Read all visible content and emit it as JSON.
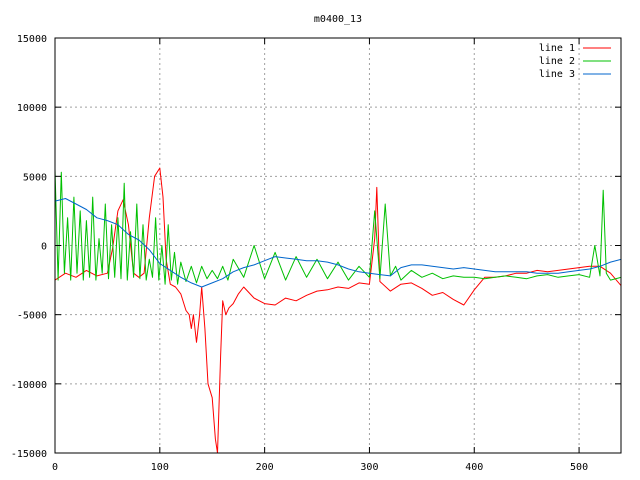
{
  "chart_data": {
    "type": "line",
    "title": "m0400_13",
    "xlabel": "",
    "ylabel": "",
    "xlim": [
      0,
      540
    ],
    "ylim": [
      -15000,
      15000
    ],
    "x_ticks": [
      0,
      100,
      200,
      300,
      400,
      500
    ],
    "y_ticks": [
      -15000,
      -10000,
      -5000,
      0,
      5000,
      10000,
      15000
    ],
    "grid": true,
    "legend_position": "top-right",
    "series": [
      {
        "name": "line 1",
        "color": "#ff0000",
        "x": [
          0,
          10,
          20,
          30,
          40,
          50,
          55,
          60,
          65,
          70,
          75,
          80,
          85,
          90,
          95,
          100,
          103,
          106,
          110,
          115,
          120,
          125,
          128,
          130,
          132,
          135,
          138,
          140,
          143,
          146,
          150,
          153,
          155,
          158,
          160,
          163,
          166,
          170,
          175,
          180,
          190,
          200,
          210,
          220,
          230,
          240,
          250,
          260,
          270,
          280,
          290,
          300,
          305,
          307,
          310,
          320,
          330,
          340,
          350,
          360,
          370,
          380,
          390,
          400,
          410,
          420,
          430,
          440,
          450,
          460,
          470,
          480,
          490,
          500,
          510,
          520,
          530,
          540
        ],
        "values": [
          -2500,
          -2000,
          -2300,
          -1800,
          -2200,
          -2000,
          -200,
          2500,
          3300,
          1500,
          -2000,
          -2300,
          -2000,
          2000,
          5000,
          5600,
          3500,
          -1000,
          -2800,
          -3000,
          -3500,
          -4700,
          -5000,
          -6000,
          -5000,
          -7000,
          -5000,
          -3000,
          -6000,
          -10000,
          -11000,
          -14000,
          -15000,
          -8000,
          -4000,
          -5000,
          -4500,
          -4200,
          -3500,
          -3000,
          -3800,
          -4200,
          -4300,
          -3800,
          -4000,
          -3600,
          -3300,
          -3200,
          -3000,
          -3100,
          -2700,
          -2800,
          500,
          4200,
          -2600,
          -3300,
          -2800,
          -2700,
          -3100,
          -3600,
          -3400,
          -3900,
          -4300,
          -3200,
          -2300,
          -2300,
          -2200,
          -2000,
          -2000,
          -1800,
          -1900,
          -1800,
          -1700,
          -1600,
          -1500,
          -1500,
          -2000,
          -2900
        ]
      },
      {
        "name": "line 2",
        "color": "#00c000",
        "x": [
          0,
          3,
          6,
          9,
          12,
          15,
          18,
          21,
          24,
          27,
          30,
          33,
          36,
          39,
          42,
          45,
          48,
          51,
          54,
          57,
          60,
          63,
          66,
          69,
          72,
          75,
          78,
          81,
          84,
          87,
          90,
          93,
          96,
          99,
          102,
          105,
          108,
          111,
          114,
          117,
          120,
          125,
          130,
          135,
          140,
          145,
          150,
          155,
          160,
          165,
          170,
          180,
          190,
          200,
          210,
          220,
          230,
          240,
          250,
          260,
          270,
          280,
          290,
          300,
          305,
          310,
          315,
          320,
          325,
          330,
          340,
          350,
          360,
          370,
          380,
          390,
          400,
          410,
          420,
          430,
          440,
          450,
          460,
          470,
          480,
          490,
          500,
          510,
          515,
          520,
          523,
          526,
          530,
          540
        ],
        "values": [
          5500,
          -2500,
          5300,
          -2000,
          2000,
          -2500,
          3500,
          -2000,
          2500,
          -2500,
          1800,
          -2300,
          3500,
          -2500,
          500,
          -2000,
          3000,
          -2400,
          1500,
          -2300,
          2000,
          -2400,
          4500,
          -2500,
          1000,
          -2300,
          3000,
          -2400,
          1500,
          -2500,
          -1000,
          -2300,
          2000,
          -2500,
          0,
          -2800,
          1500,
          -2500,
          -500,
          -2800,
          -1200,
          -2600,
          -1500,
          -2700,
          -1500,
          -2400,
          -1800,
          -2400,
          -1500,
          -2500,
          -1000,
          -2300,
          0,
          -2400,
          -500,
          -2500,
          -800,
          -2300,
          -1000,
          -2400,
          -1200,
          -2500,
          -1500,
          -2300,
          2500,
          -2400,
          3000,
          -2200,
          -1500,
          -2500,
          -1800,
          -2300,
          -2000,
          -2400,
          -2200,
          -2300,
          -2300,
          -2400,
          -2300,
          -2200,
          -2300,
          -2400,
          -2200,
          -2100,
          -2300,
          -2200,
          -2100,
          -2300,
          0,
          -2200,
          4000,
          -2000,
          -2500,
          -2300
        ]
      },
      {
        "name": "line 3",
        "color": "#0066cc",
        "x": [
          0,
          10,
          20,
          30,
          40,
          50,
          60,
          70,
          80,
          90,
          100,
          110,
          120,
          130,
          140,
          150,
          160,
          170,
          180,
          190,
          200,
          210,
          220,
          230,
          240,
          250,
          260,
          270,
          280,
          290,
          300,
          310,
          320,
          330,
          340,
          350,
          360,
          370,
          380,
          390,
          400,
          410,
          420,
          430,
          440,
          450,
          460,
          470,
          480,
          490,
          500,
          510,
          520,
          530,
          540
        ],
        "values": [
          3200,
          3400,
          3000,
          2600,
          2000,
          1800,
          1500,
          800,
          400,
          -300,
          -1300,
          -1800,
          -2300,
          -2700,
          -3000,
          -2700,
          -2400,
          -1900,
          -1600,
          -1400,
          -1100,
          -800,
          -900,
          -1000,
          -1100,
          -1100,
          -1200,
          -1400,
          -1700,
          -1900,
          -2000,
          -2100,
          -2200,
          -1600,
          -1400,
          -1400,
          -1500,
          -1600,
          -1700,
          -1600,
          -1700,
          -1800,
          -1900,
          -1900,
          -1900,
          -1900,
          -2000,
          -2000,
          -2000,
          -1900,
          -1800,
          -1700,
          -1500,
          -1200,
          -1000
        ]
      }
    ]
  }
}
